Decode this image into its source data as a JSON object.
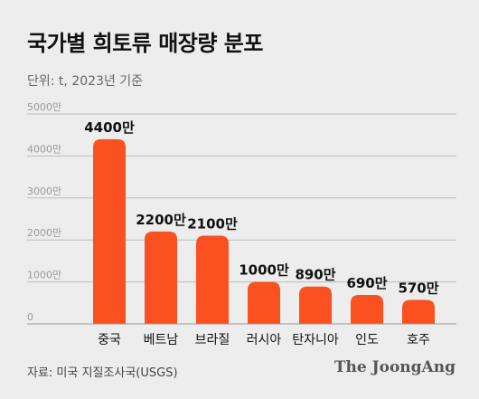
{
  "header": {
    "title": "국가별 희토류 매장량 분포",
    "subtitle": "단위: t, 2023년 기준"
  },
  "footer": {
    "source": "자료: 미국 지질조사국(USGS)",
    "logo": "The JoongAng"
  },
  "colors": {
    "bar": "#fb5020",
    "grid": "#bdbdbd",
    "tick": "#999999",
    "background": "#ededed"
  },
  "chart_data": {
    "type": "bar",
    "categories": [
      "중국",
      "베트남",
      "브라질",
      "러시아",
      "탄자니아",
      "인도",
      "호주"
    ],
    "values": [
      44000000,
      22000000,
      21000000,
      10000000,
      8900000,
      6900000,
      5700000
    ],
    "data_labels": [
      "4400만",
      "2200만",
      "2100만",
      "1000만",
      "890만",
      "690만",
      "570만"
    ],
    "y_ticks": [
      0,
      10000000,
      20000000,
      30000000,
      40000000,
      50000000
    ],
    "y_tick_labels": [
      "0",
      "1000만",
      "2000만",
      "3000만",
      "4000만",
      "5000만"
    ],
    "ylim": [
      0,
      50000000
    ],
    "grid": true,
    "legend": "none"
  }
}
